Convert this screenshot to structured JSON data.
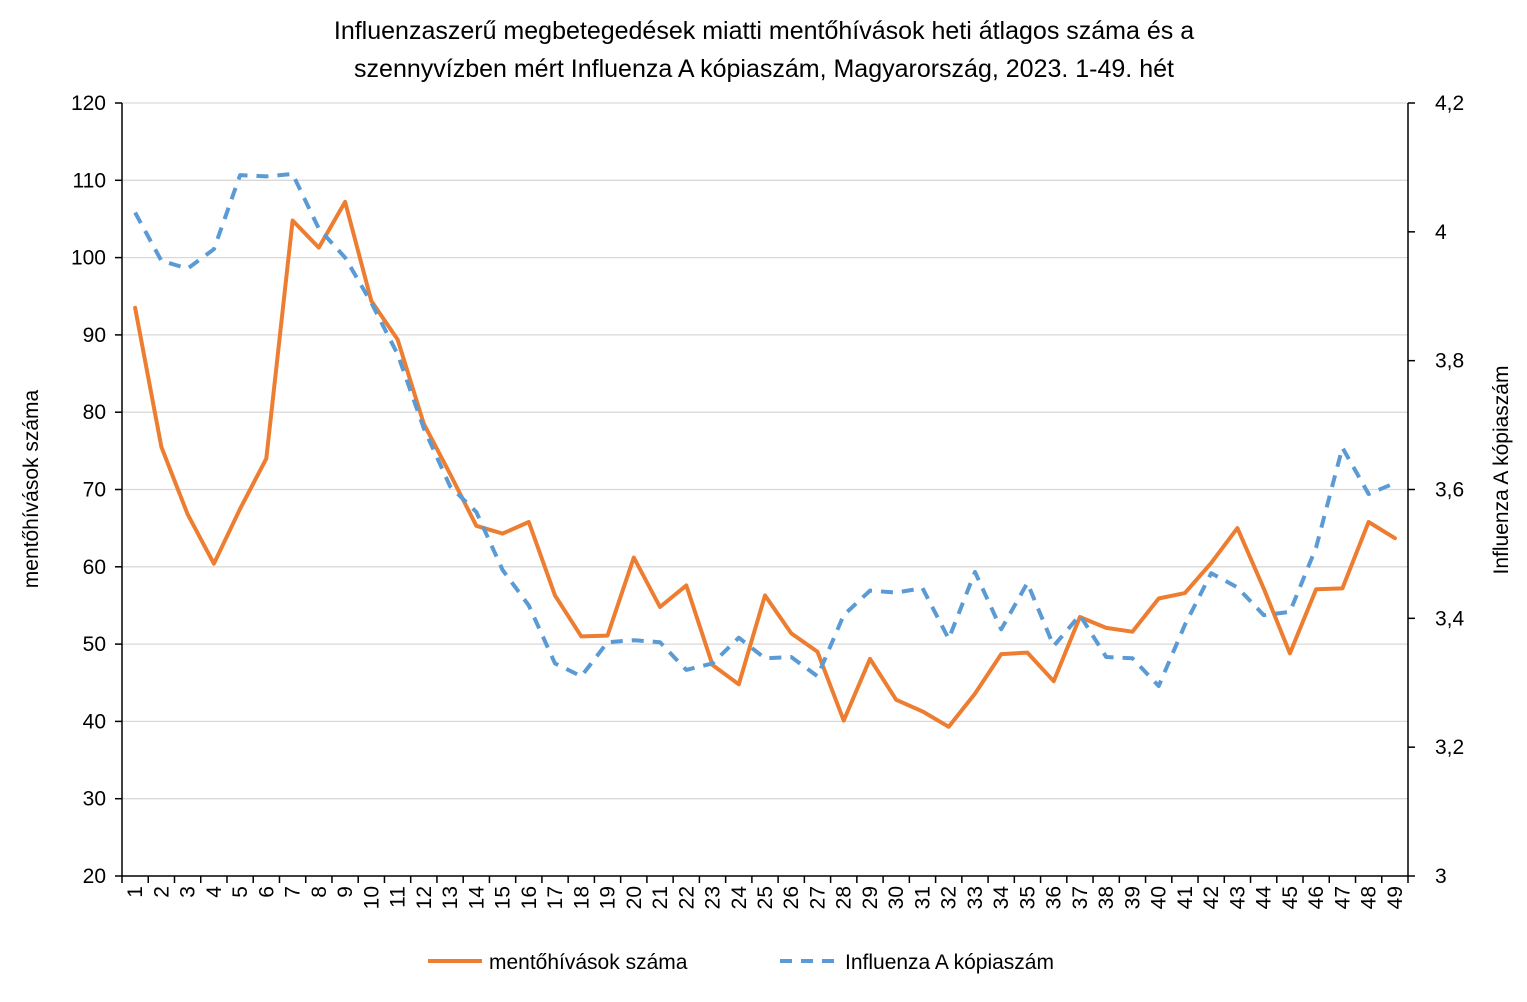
{
  "chart_data": {
    "type": "line",
    "title_lines": [
      "Influenzaszerű megbetegedések miatti mentőhívások heti átlagos száma és a",
      "szennyvízben mért Influenza A kópiaszám, Magyarország, 2023. 1-49. hét"
    ],
    "xlabel": "",
    "ylabel": "mentőhívások száma",
    "y2label": "Influenza A kópiaszám",
    "ylim": [
      20,
      120
    ],
    "y2lim": [
      3,
      4.2
    ],
    "yticks": [
      "20",
      "30",
      "40",
      "50",
      "60",
      "70",
      "80",
      "90",
      "100",
      "110",
      "120"
    ],
    "y2ticks": [
      "3",
      "3,2",
      "3,4",
      "3,6",
      "3,8",
      "4",
      "4,2"
    ],
    "categories": [
      "1",
      "2",
      "3",
      "4",
      "5",
      "6",
      "7",
      "8",
      "9",
      "10",
      "11",
      "12",
      "13",
      "14",
      "15",
      "16",
      "17",
      "18",
      "19",
      "20",
      "21",
      "22",
      "23",
      "24",
      "25",
      "26",
      "27",
      "28",
      "29",
      "30",
      "31",
      "32",
      "33",
      "34",
      "35",
      "36",
      "37",
      "38",
      "39",
      "40",
      "41",
      "42",
      "43",
      "44",
      "45",
      "46",
      "47",
      "48",
      "49"
    ],
    "grid": true,
    "legend_position": "bottom-center",
    "series": [
      {
        "name": "mentőhívások száma",
        "axis": "left",
        "style": "solid",
        "color": "#ED7D31",
        "values": [
          93.5,
          75.5,
          66.8,
          60.4,
          67.5,
          74,
          104.8,
          101.3,
          107.2,
          94.4,
          89.4,
          78.5,
          72,
          65.3,
          64.3,
          65.8,
          56.3,
          51,
          51.1,
          61.2,
          54.8,
          57.6,
          47.3,
          44.8,
          56.3,
          51.4,
          49,
          40.1,
          48.1,
          42.8,
          41.3,
          39.3,
          43.6,
          48.7,
          48.9,
          45.2,
          53.5,
          52.1,
          51.6,
          55.9,
          56.6,
          60.5,
          65,
          57.2,
          48.8,
          57.1,
          57.2,
          65.8,
          63.7
        ]
      },
      {
        "name": "Influenza A kópiaszám",
        "axis": "right",
        "style": "dashed",
        "color": "#5B9BD5",
        "values": [
          4.03,
          3.955,
          3.943,
          3.973,
          4.088,
          4.086,
          4.09,
          4.005,
          3.96,
          3.89,
          3.81,
          3.695,
          3.605,
          3.565,
          3.475,
          3.42,
          3.33,
          3.31,
          3.363,
          3.366,
          3.363,
          3.32,
          3.33,
          3.37,
          3.338,
          3.34,
          3.31,
          3.405,
          3.443,
          3.44,
          3.447,
          3.368,
          3.472,
          3.383,
          3.455,
          3.357,
          3.405,
          3.34,
          3.338,
          3.295,
          3.39,
          3.47,
          3.448,
          3.405,
          3.41,
          3.51,
          3.665,
          3.593,
          3.61
        ]
      }
    ]
  }
}
